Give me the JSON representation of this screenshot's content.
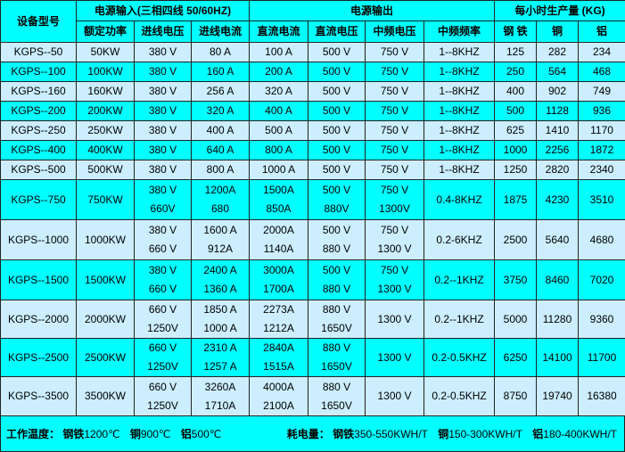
{
  "header": {
    "model": "设备型号",
    "input_group": "电源输入(三相四线 50/60HZ)",
    "output_group": "电源输出",
    "yield_group": "每小时生产量 (KG)",
    "columns": [
      "额定功率",
      "进线电压",
      "进线电流",
      "直流电流",
      "直流电压",
      "中频电压",
      "中频频率",
      "钢 铁",
      "铜",
      "铝"
    ]
  },
  "rows": [
    {
      "model": "KGPS--50",
      "cells": [
        "50KW",
        "380 V",
        "80 A",
        "100 A",
        "500 V",
        "750 V",
        "1--8KHZ",
        "125",
        "282",
        "234"
      ]
    },
    {
      "model": "KGPS--100",
      "cells": [
        "100KW",
        "380 V",
        "160 A",
        "200 A",
        "500 V",
        "750 V",
        "1--8KHZ",
        "250",
        "564",
        "468"
      ]
    },
    {
      "model": "KGPS--160",
      "cells": [
        "160KW",
        "380 V",
        "256 A",
        "320 A",
        "500 V",
        "750 V",
        "1--8KHZ",
        "400",
        "902",
        "749"
      ]
    },
    {
      "model": "KGPS--200",
      "cells": [
        "200KW",
        "380 V",
        "320 A",
        "400 A",
        "500 V",
        "750 V",
        "1--8KHZ",
        "500",
        "1128",
        "936"
      ]
    },
    {
      "model": "KGPS--250",
      "cells": [
        "250KW",
        "380 V",
        "400 A",
        "500 A",
        "500 V",
        "750 V",
        "1--8KHZ",
        "625",
        "1410",
        "1170"
      ]
    },
    {
      "model": "KGPS--400",
      "cells": [
        "400KW",
        "380 V",
        "640 A",
        "800 A",
        "500 V",
        "750 V",
        "1--8KHZ",
        "1000",
        "2256",
        "1872"
      ]
    },
    {
      "model": "KGPS--500",
      "cells": [
        "500KW",
        "380 V",
        "800 A",
        "1000 A",
        "500 V",
        "750 V",
        "1--8KHZ",
        "1250",
        "2820",
        "2340"
      ]
    },
    {
      "model": "KGPS--750",
      "cells": [
        "750KW",
        [
          "380 V",
          "660V"
        ],
        [
          "1200A",
          "680"
        ],
        [
          "1500A",
          "850A"
        ],
        [
          "500 V",
          "880V"
        ],
        [
          "750 V",
          "1300V"
        ],
        "0.4-8KHZ",
        "1875",
        "4230",
        "3510"
      ]
    },
    {
      "model": "KGPS--1000",
      "cells": [
        "1000KW",
        [
          "380 V",
          "660 V"
        ],
        [
          "1600 A",
          "912A"
        ],
        [
          "2000A",
          "1140A"
        ],
        [
          "500 V",
          "880 V"
        ],
        [
          "750 V",
          "1300 V"
        ],
        "0.2-6KHZ",
        "2500",
        "5640",
        "4680"
      ]
    },
    {
      "model": "KGPS--1500",
      "cells": [
        "1500KW",
        [
          "380 V",
          "660 V"
        ],
        [
          "2400 A",
          "1360 A"
        ],
        [
          "3000A",
          "1700A"
        ],
        [
          "500 V",
          "880 V"
        ],
        [
          "750 V",
          "1300 V"
        ],
        "0.2--1KHZ",
        "3750",
        "8460",
        "7020"
      ]
    },
    {
      "model": "KGPS--2000",
      "cells": [
        "2000KW",
        [
          "660 V",
          "1250V"
        ],
        [
          "1850 A",
          "1000 A"
        ],
        [
          "2273A",
          "1212A"
        ],
        [
          "880 V",
          "1650V"
        ],
        "1300 V",
        "0.2--1KHZ",
        "5000",
        "11280",
        "9360"
      ]
    },
    {
      "model": "KGPS--2500",
      "cells": [
        "2500KW",
        [
          "660 V",
          "1250V"
        ],
        [
          "2310 A",
          "1257 A"
        ],
        [
          "2840A",
          "1515A"
        ],
        [
          "880 V",
          "1650V"
        ],
        "1300 V",
        "0.2-0.5KHZ",
        "6250",
        "14100",
        "11700"
      ]
    },
    {
      "model": "KGPS--3500",
      "cells": [
        "3500KW",
        [
          "660 V",
          "1250V"
        ],
        [
          "3260A",
          "1710A"
        ],
        [
          "4000A",
          "2100A"
        ],
        [
          "880 V",
          "1650V"
        ],
        "1300 V",
        "0.2-0.5KHZ",
        "8750",
        "19740",
        "16380"
      ]
    }
  ],
  "footer": {
    "temp_label": "工作温度：",
    "temp": [
      {
        "metal": "钢铁",
        "value": "1200℃"
      },
      {
        "metal": "铜",
        "value": "900℃"
      },
      {
        "metal": "铝",
        "value": "500℃"
      }
    ],
    "power_label": "耗电量：",
    "power": [
      {
        "metal": "钢铁",
        "value": "350-550KWH/T"
      },
      {
        "metal": "铜",
        "value": "150-300KWH/T"
      },
      {
        "metal": "铝",
        "value": "180-400KWH/T"
      }
    ]
  },
  "colors": {
    "header": "#00ffff",
    "row_alt": "#00ffff",
    "row": "#cceeff",
    "border": "#222222"
  }
}
